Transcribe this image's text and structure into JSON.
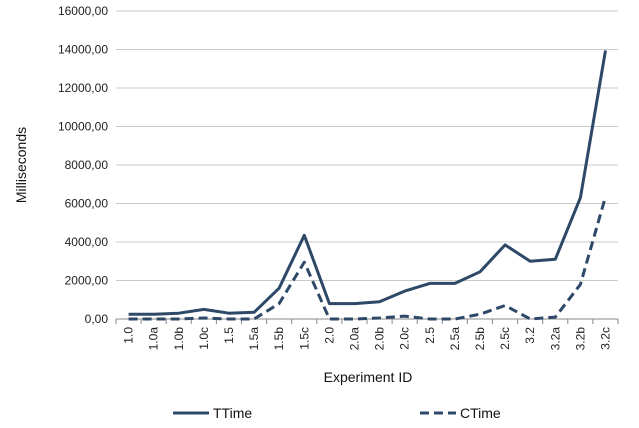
{
  "chart_data": {
    "type": "line",
    "title": "",
    "xlabel": "Experiment ID",
    "ylabel": "Milliseconds",
    "categories": [
      "1.0",
      "1.0a",
      "1.0b",
      "1.0c",
      "1.5",
      "1.5a",
      "1.5b",
      "1.5c",
      "2.0",
      "2.0a",
      "2.0b",
      "2.0c",
      "2.5",
      "2.5a",
      "2.5b",
      "2.5c",
      "3.2",
      "3.2a",
      "3.2b",
      "3.2c"
    ],
    "ylim": [
      0,
      16000
    ],
    "yticks": [
      "0,00",
      "2000,00",
      "4000,00",
      "6000,00",
      "8000,00",
      "10000,00",
      "12000,00",
      "14000,00",
      "16000,00"
    ],
    "grid": true,
    "legend_position": "bottom",
    "colors": {
      "series": "#2e4868",
      "grid": "#c8c8c8",
      "axis": "#888888"
    },
    "series": [
      {
        "name": "TTime",
        "style": "solid",
        "values": [
          250,
          250,
          300,
          500,
          300,
          350,
          1600,
          4350,
          800,
          800,
          900,
          1450,
          1850,
          1850,
          2450,
          3850,
          3000,
          3100,
          6300,
          13950
        ]
      },
      {
        "name": "CTime",
        "style": "dashed",
        "values": [
          0,
          0,
          0,
          50,
          0,
          0,
          800,
          2950,
          0,
          0,
          50,
          150,
          0,
          0,
          250,
          700,
          0,
          100,
          1800,
          6350
        ]
      }
    ]
  }
}
